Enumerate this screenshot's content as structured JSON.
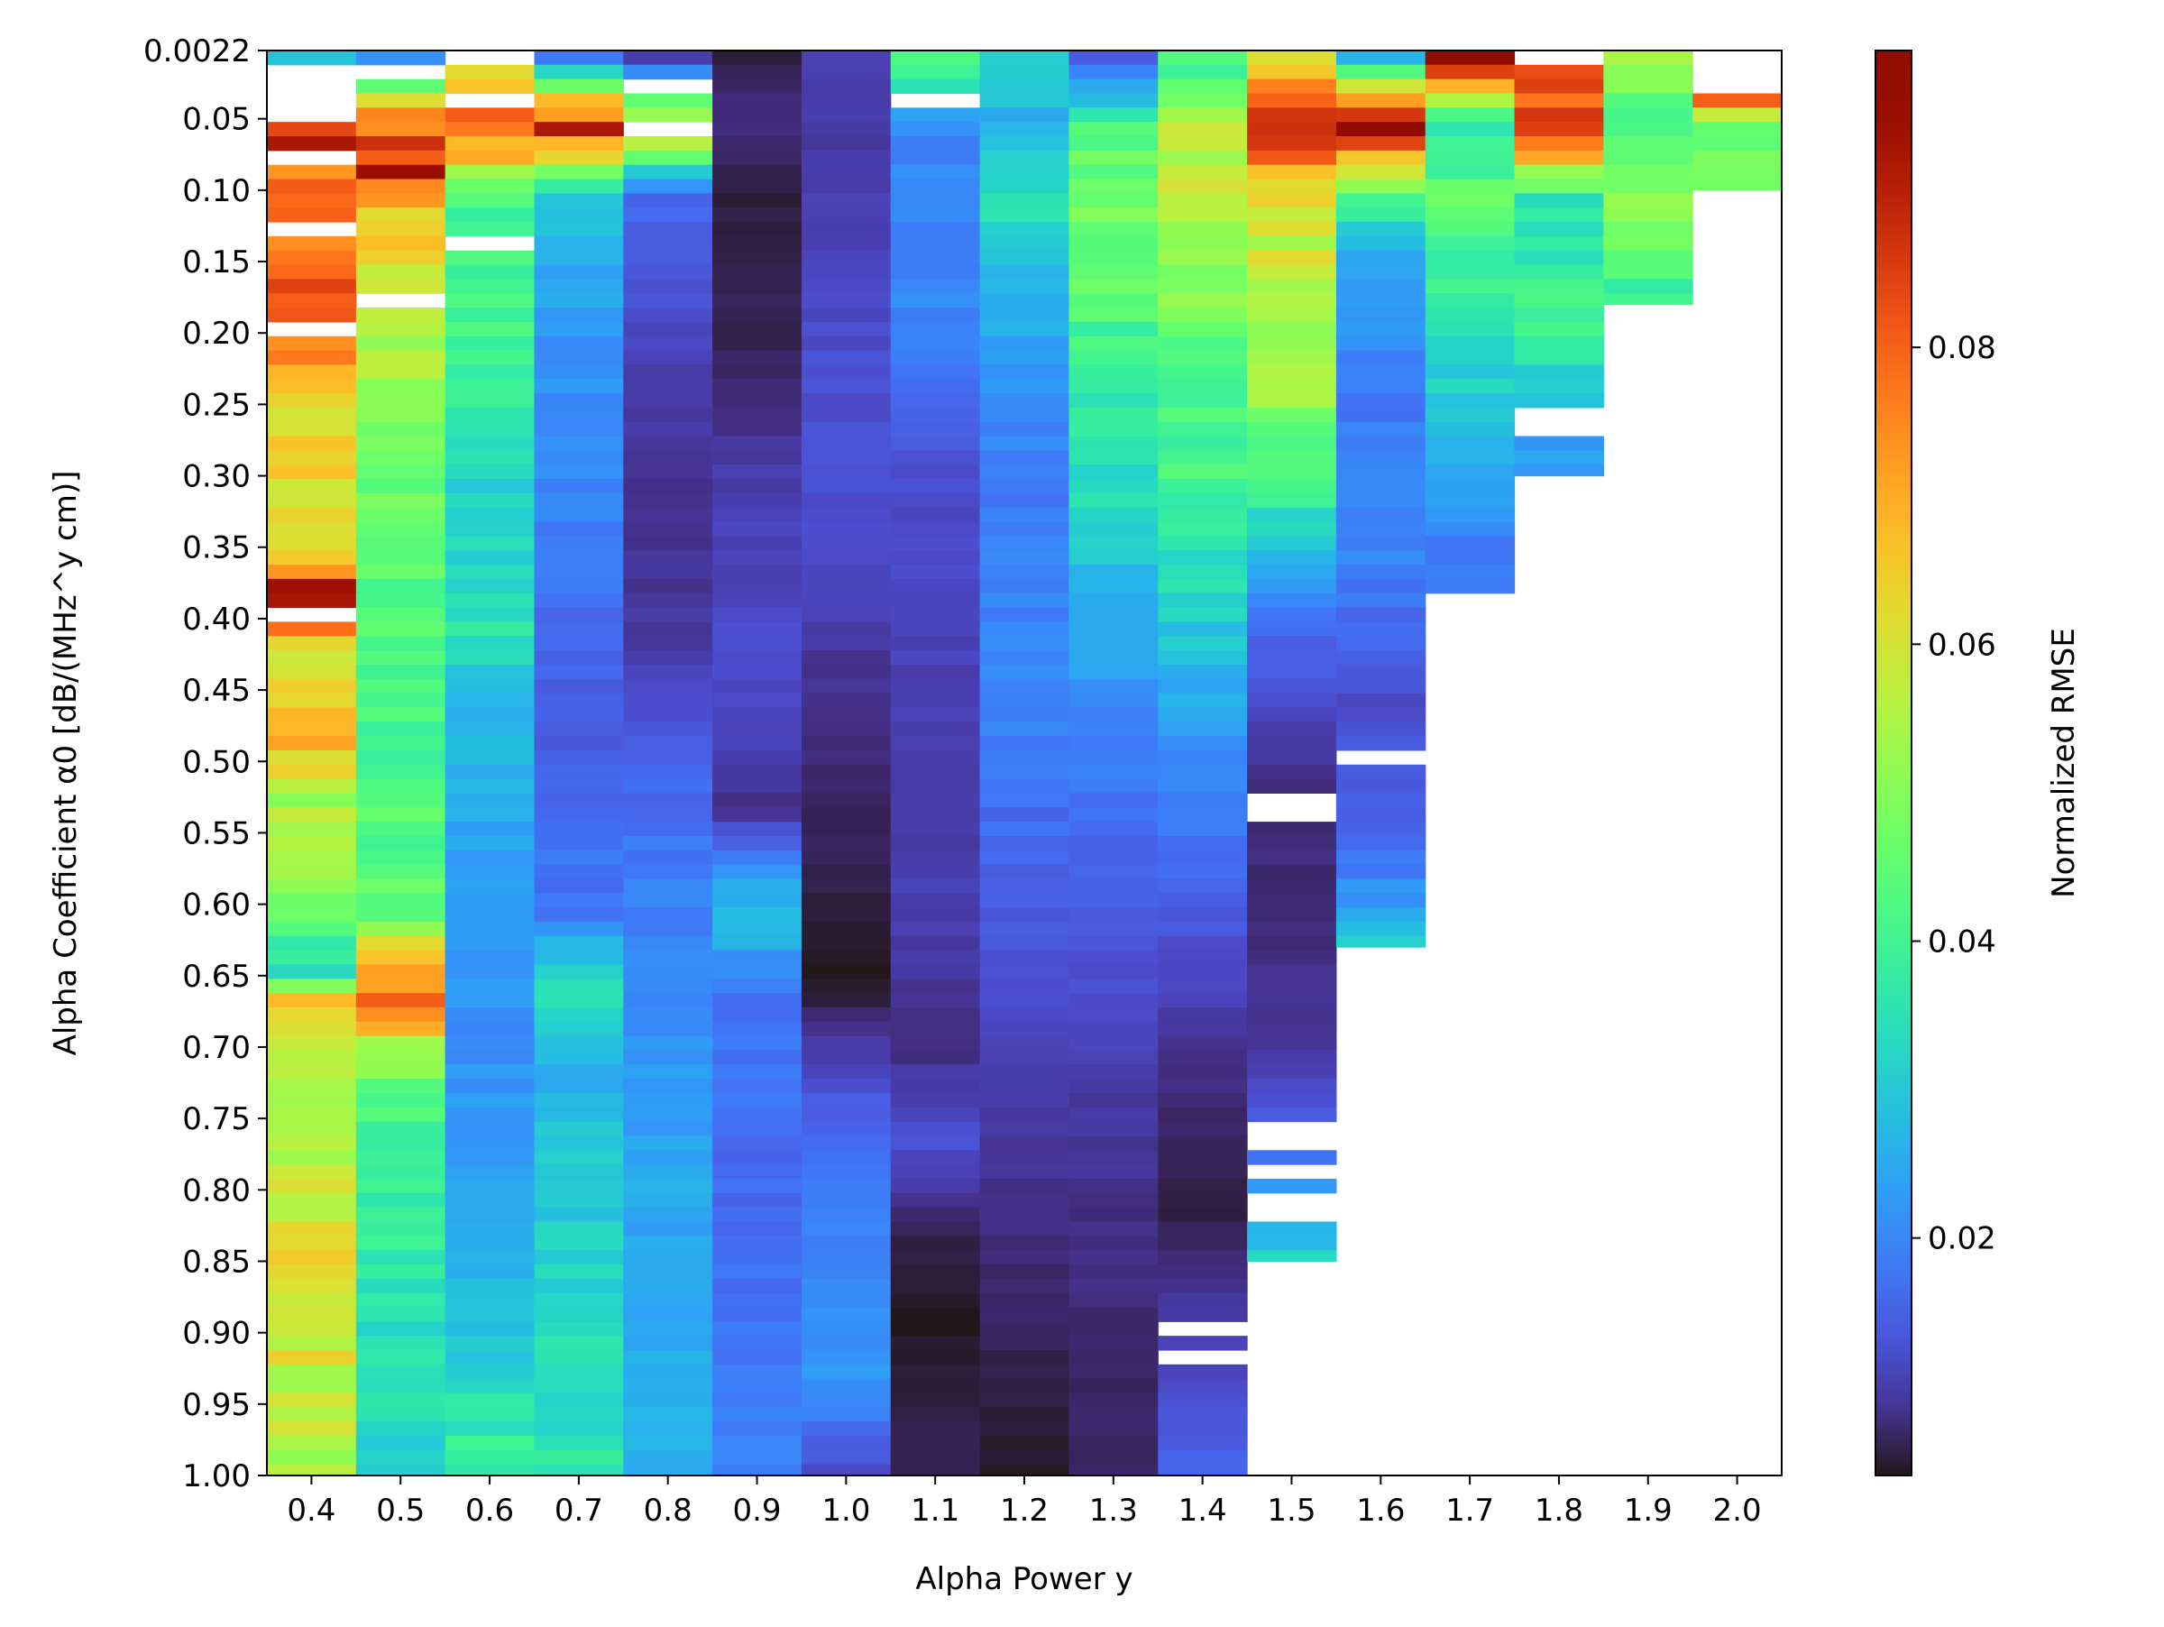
{
  "chart_data": {
    "type": "heatmap",
    "xlabel": "Alpha Power y",
    "ylabel": "Alpha Coefficient α0 [dB/(MHz^y cm)]",
    "x_ticks": [
      "0.4",
      "0.5",
      "0.6",
      "0.7",
      "0.8",
      "0.9",
      "1.0",
      "1.1",
      "1.2",
      "1.3",
      "1.4",
      "1.5",
      "1.6",
      "1.7",
      "1.8",
      "1.9",
      "2.0"
    ],
    "y_ticks": [
      "0.0022",
      "0.05",
      "0.10",
      "0.15",
      "0.20",
      "0.25",
      "0.30",
      "0.35",
      "0.40",
      "0.45",
      "0.50",
      "0.55",
      "0.60",
      "0.65",
      "0.70",
      "0.75",
      "0.80",
      "0.85",
      "0.90",
      "0.95",
      "1.00"
    ],
    "y_range": [
      0.0022,
      1.0
    ],
    "colorbar": {
      "label": "Normalized RMSE",
      "range": [
        0.004,
        0.1
      ],
      "ticks": [
        "0.02",
        "0.04",
        "0.06",
        "0.08"
      ],
      "colormap": "turbo"
    },
    "max_alpha_coefficient": [
      1.0,
      1.0,
      1.0,
      1.0,
      1.0,
      1.0,
      1.0,
      1.0,
      1.0,
      1.0,
      1.0,
      0.85,
      0.63,
      0.41,
      0.3,
      0.18,
      0.1
    ],
    "missing_cells": [
      {
        "x": 0.4,
        "from": 0.005,
        "to": 0.045
      },
      {
        "x": 0.4,
        "from": 0.065,
        "to": 0.075
      },
      {
        "x": 0.4,
        "from": 0.115,
        "to": 0.125
      },
      {
        "x": 0.4,
        "from": 0.185,
        "to": 0.195
      },
      {
        "x": 0.4,
        "from": 0.39,
        "to": 0.4
      },
      {
        "x": 0.5,
        "from": 0.005,
        "to": 0.015
      },
      {
        "x": 0.5,
        "from": 0.165,
        "to": 0.175
      },
      {
        "x": 0.6,
        "from": 0.0022,
        "to": 0.005
      },
      {
        "x": 0.6,
        "from": 0.025,
        "to": 0.035
      },
      {
        "x": 0.6,
        "from": 0.125,
        "to": 0.135
      },
      {
        "x": 0.8,
        "from": 0.015,
        "to": 0.025
      },
      {
        "x": 0.8,
        "from": 0.045,
        "to": 0.055
      },
      {
        "x": 1.1,
        "from": 0.025,
        "to": 0.035
      },
      {
        "x": 1.4,
        "from": 0.885,
        "to": 0.895
      },
      {
        "x": 1.4,
        "from": 0.905,
        "to": 0.915
      },
      {
        "x": 1.5,
        "from": 0.745,
        "to": 0.765
      },
      {
        "x": 1.5,
        "from": 0.775,
        "to": 0.785
      },
      {
        "x": 1.5,
        "from": 0.795,
        "to": 0.815
      },
      {
        "x": 1.5,
        "from": 0.515,
        "to": 0.535
      },
      {
        "x": 1.6,
        "from": 0.485,
        "to": 0.495
      },
      {
        "x": 1.7,
        "from": 0.375,
        "to": 0.405
      },
      {
        "x": 1.8,
        "from": 0.25,
        "to": 0.265
      },
      {
        "x": 1.8,
        "from": 0.0022,
        "to": 0.005
      },
      {
        "x": 2.0,
        "from": 0.0022,
        "to": 0.025
      }
    ],
    "columns": [
      {
        "x": 0.4,
        "nrmse_profile": [
          [
            0.0022,
            0.032
          ],
          [
            0.045,
            0.095
          ],
          [
            0.08,
            0.075
          ],
          [
            0.16,
            0.078
          ],
          [
            0.2,
            0.078
          ],
          [
            0.25,
            0.062
          ],
          [
            0.35,
            0.06
          ],
          [
            0.38,
            0.1
          ],
          [
            0.42,
            0.058
          ],
          [
            0.48,
            0.07
          ],
          [
            0.52,
            0.055
          ],
          [
            0.6,
            0.05
          ],
          [
            0.64,
            0.032
          ],
          [
            0.66,
            0.065
          ],
          [
            0.72,
            0.055
          ],
          [
            0.82,
            0.06
          ],
          [
            0.84,
            0.065
          ],
          [
            1.0,
            0.052
          ]
        ]
      },
      {
        "x": 0.5,
        "nrmse_profile": [
          [
            0.0022,
            0.02
          ],
          [
            0.03,
            0.06
          ],
          [
            0.05,
            0.078
          ],
          [
            0.08,
            0.09
          ],
          [
            0.1,
            0.07
          ],
          [
            0.2,
            0.055
          ],
          [
            0.3,
            0.045
          ],
          [
            0.5,
            0.042
          ],
          [
            0.6,
            0.045
          ],
          [
            0.66,
            0.082
          ],
          [
            0.7,
            0.05
          ],
          [
            0.75,
            0.04
          ],
          [
            0.85,
            0.036
          ],
          [
            1.0,
            0.032
          ]
        ]
      },
      {
        "x": 0.6,
        "nrmse_profile": [
          [
            0.0022,
            0.055
          ],
          [
            0.05,
            0.085
          ],
          [
            0.1,
            0.04
          ],
          [
            0.2,
            0.04
          ],
          [
            0.3,
            0.032
          ],
          [
            0.4,
            0.035
          ],
          [
            0.45,
            0.028
          ],
          [
            0.55,
            0.024
          ],
          [
            0.7,
            0.021
          ],
          [
            0.78,
            0.024
          ],
          [
            0.85,
            0.026
          ],
          [
            1.0,
            0.04
          ]
        ]
      },
      {
        "x": 0.7,
        "nrmse_profile": [
          [
            0.0022,
            0.018
          ],
          [
            0.05,
            0.09
          ],
          [
            0.1,
            0.028
          ],
          [
            0.2,
            0.022
          ],
          [
            0.3,
            0.02
          ],
          [
            0.4,
            0.016
          ],
          [
            0.45,
            0.014
          ],
          [
            0.6,
            0.018
          ],
          [
            0.65,
            0.035
          ],
          [
            0.7,
            0.026
          ],
          [
            0.8,
            0.03
          ],
          [
            1.0,
            0.036
          ]
        ]
      },
      {
        "x": 0.8,
        "nrmse_profile": [
          [
            0.0022,
            0.01
          ],
          [
            0.05,
            0.065
          ],
          [
            0.1,
            0.016
          ],
          [
            0.2,
            0.011
          ],
          [
            0.3,
            0.008
          ],
          [
            0.4,
            0.009
          ],
          [
            0.45,
            0.012
          ],
          [
            0.55,
            0.018
          ],
          [
            0.7,
            0.022
          ],
          [
            0.8,
            0.025
          ],
          [
            1.0,
            0.026
          ]
        ]
      },
      {
        "x": 0.9,
        "nrmse_profile": [
          [
            0.0022,
            0.005
          ],
          [
            0.05,
            0.008
          ],
          [
            0.1,
            0.005
          ],
          [
            0.2,
            0.006
          ],
          [
            0.3,
            0.01
          ],
          [
            0.45,
            0.012
          ],
          [
            0.53,
            0.008
          ],
          [
            0.6,
            0.03
          ],
          [
            0.65,
            0.018
          ],
          [
            0.8,
            0.016
          ],
          [
            1.0,
            0.02
          ]
        ]
      },
      {
        "x": 1.0,
        "nrmse_profile": [
          [
            0.0022,
            0.01
          ],
          [
            0.05,
            0.009
          ],
          [
            0.1,
            0.01
          ],
          [
            0.2,
            0.012
          ],
          [
            0.3,
            0.013
          ],
          [
            0.45,
            0.008
          ],
          [
            0.55,
            0.006
          ],
          [
            0.65,
            0.004
          ],
          [
            0.77,
            0.018
          ],
          [
            0.83,
            0.02
          ],
          [
            0.93,
            0.022
          ],
          [
            1.0,
            0.011
          ]
        ]
      },
      {
        "x": 1.1,
        "nrmse_profile": [
          [
            0.0022,
            0.045
          ],
          [
            0.05,
            0.02
          ],
          [
            0.1,
            0.02
          ],
          [
            0.2,
            0.02
          ],
          [
            0.3,
            0.012
          ],
          [
            0.45,
            0.01
          ],
          [
            0.6,
            0.01
          ],
          [
            0.7,
            0.008
          ],
          [
            0.76,
            0.013
          ],
          [
            0.82,
            0.006
          ],
          [
            0.88,
            0.004
          ],
          [
            1.0,
            0.006
          ]
        ]
      },
      {
        "x": 1.2,
        "nrmse_profile": [
          [
            0.0022,
            0.032
          ],
          [
            0.05,
            0.026
          ],
          [
            0.1,
            0.034
          ],
          [
            0.2,
            0.024
          ],
          [
            0.3,
            0.018
          ],
          [
            0.42,
            0.02
          ],
          [
            0.55,
            0.016
          ],
          [
            0.65,
            0.012
          ],
          [
            0.8,
            0.008
          ],
          [
            1.0,
            0.004
          ]
        ]
      },
      {
        "x": 1.3,
        "nrmse_profile": [
          [
            0.0022,
            0.014
          ],
          [
            0.05,
            0.04
          ],
          [
            0.1,
            0.05
          ],
          [
            0.2,
            0.04
          ],
          [
            0.3,
            0.034
          ],
          [
            0.4,
            0.025
          ],
          [
            0.5,
            0.018
          ],
          [
            0.6,
            0.014
          ],
          [
            0.7,
            0.01
          ],
          [
            0.8,
            0.008
          ],
          [
            1.0,
            0.006
          ]
        ]
      },
      {
        "x": 1.4,
        "nrmse_profile": [
          [
            0.0022,
            0.04
          ],
          [
            0.05,
            0.055
          ],
          [
            0.1,
            0.058
          ],
          [
            0.2,
            0.045
          ],
          [
            0.3,
            0.04
          ],
          [
            0.4,
            0.03
          ],
          [
            0.5,
            0.02
          ],
          [
            0.6,
            0.014
          ],
          [
            0.7,
            0.008
          ],
          [
            0.8,
            0.005
          ],
          [
            0.9,
            0.01
          ],
          [
            1.0,
            0.016
          ]
        ]
      },
      {
        "x": 1.5,
        "nrmse_profile": [
          [
            0.0022,
            0.058
          ],
          [
            0.05,
            0.088
          ],
          [
            0.1,
            0.06
          ],
          [
            0.18,
            0.055
          ],
          [
            0.25,
            0.05
          ],
          [
            0.3,
            0.04
          ],
          [
            0.4,
            0.016
          ],
          [
            0.5,
            0.008
          ],
          [
            0.6,
            0.007
          ],
          [
            0.7,
            0.009
          ],
          [
            0.75,
            0.014
          ],
          [
            0.85,
            0.032
          ]
        ]
      },
      {
        "x": 1.6,
        "nrmse_profile": [
          [
            0.0022,
            0.028
          ],
          [
            0.05,
            0.095
          ],
          [
            0.1,
            0.04
          ],
          [
            0.15,
            0.024
          ],
          [
            0.25,
            0.018
          ],
          [
            0.35,
            0.02
          ],
          [
            0.45,
            0.012
          ],
          [
            0.55,
            0.015
          ],
          [
            0.6,
            0.024
          ],
          [
            0.63,
            0.032
          ]
        ]
      },
      {
        "x": 1.7,
        "nrmse_profile": [
          [
            0.0022,
            0.1
          ],
          [
            0.05,
            0.035
          ],
          [
            0.1,
            0.045
          ],
          [
            0.2,
            0.034
          ],
          [
            0.3,
            0.024
          ],
          [
            0.35,
            0.018
          ],
          [
            0.41,
            0.02
          ]
        ]
      },
      {
        "x": 1.8,
        "nrmse_profile": [
          [
            0.0022,
            0.075
          ],
          [
            0.05,
            0.09
          ],
          [
            0.1,
            0.035
          ],
          [
            0.2,
            0.04
          ],
          [
            0.25,
            0.025
          ],
          [
            0.3,
            0.022
          ]
        ]
      },
      {
        "x": 1.9,
        "nrmse_profile": [
          [
            0.0022,
            0.055
          ],
          [
            0.05,
            0.04
          ],
          [
            0.1,
            0.05
          ],
          [
            0.18,
            0.036
          ]
        ]
      },
      {
        "x": 2.0,
        "nrmse_profile": [
          [
            0.03,
            0.085
          ],
          [
            0.05,
            0.045
          ],
          [
            0.1,
            0.05
          ]
        ]
      }
    ]
  }
}
